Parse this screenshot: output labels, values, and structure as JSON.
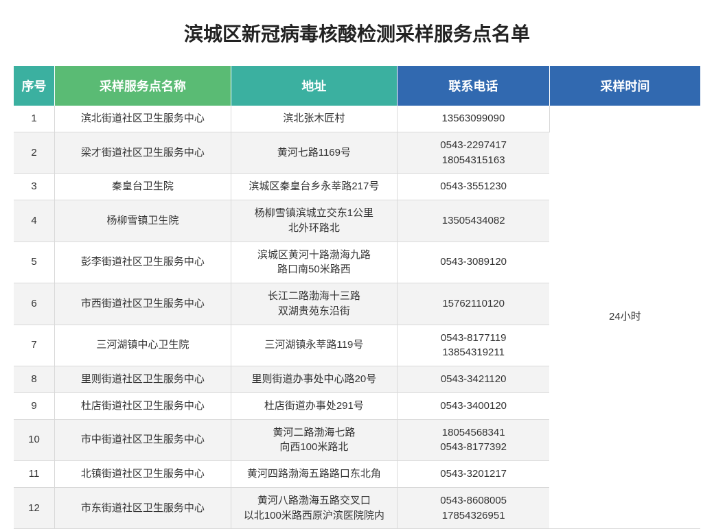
{
  "title": "滨城区新冠病毒核酸检测采样服务点名单",
  "header_bg": {
    "idx": "#3bb0a0",
    "name": "#5abb74",
    "addr": "#3bb0a0",
    "phone": "#3169b0",
    "time": "#3169b0"
  },
  "columns": {
    "idx": "序号",
    "name": "采样服务点名称",
    "addr": "地址",
    "phone": "联系电话",
    "time": "采样时间"
  },
  "merged_time": "24小时",
  "rows": [
    {
      "idx": "1",
      "name": "滨北街道社区卫生服务中心",
      "addr": "滨北张木匠村",
      "phone": "13563099090"
    },
    {
      "idx": "2",
      "name": "梁才街道社区卫生服务中心",
      "addr": "黄河七路1169号",
      "phone": "0543-2297417\n18054315163"
    },
    {
      "idx": "3",
      "name": "秦皇台卫生院",
      "addr": "滨城区秦皇台乡永莘路217号",
      "phone": "0543-3551230"
    },
    {
      "idx": "4",
      "name": "杨柳雪镇卫生院",
      "addr": "杨柳雪镇滨城立交东1公里\n北外环路北",
      "phone": "13505434082"
    },
    {
      "idx": "5",
      "name": "彭李街道社区卫生服务中心",
      "addr": "滨城区黄河十路渤海九路\n路口南50米路西",
      "phone": "0543-3089120"
    },
    {
      "idx": "6",
      "name": "市西街道社区卫生服务中心",
      "addr": "长江二路渤海十三路\n双湖贵苑东沿街",
      "phone": "15762110120"
    },
    {
      "idx": "7",
      "name": "三河湖镇中心卫生院",
      "addr": "三河湖镇永莘路119号",
      "phone": "0543-8177119\n13854319211"
    },
    {
      "idx": "8",
      "name": "里则街道社区卫生服务中心",
      "addr": "里则街道办事处中心路20号",
      "phone": "0543-3421120"
    },
    {
      "idx": "9",
      "name": "杜店街道社区卫生服务中心",
      "addr": "杜店街道办事处291号",
      "phone": "0543-3400120"
    },
    {
      "idx": "10",
      "name": "市中街道社区卫生服务中心",
      "addr": "黄河二路渤海七路\n向西100米路北",
      "phone": "18054568341\n0543-8177392"
    },
    {
      "idx": "11",
      "name": "北镇街道社区卫生服务中心",
      "addr": "黄河四路渤海五路路口东北角",
      "phone": "0543-3201217"
    },
    {
      "idx": "12",
      "name": "市东街道社区卫生服务中心",
      "addr": "黄河八路渤海五路交叉口\n以北100米路西原沪滨医院院内",
      "phone": "0543-8608005\n17854326951"
    }
  ]
}
